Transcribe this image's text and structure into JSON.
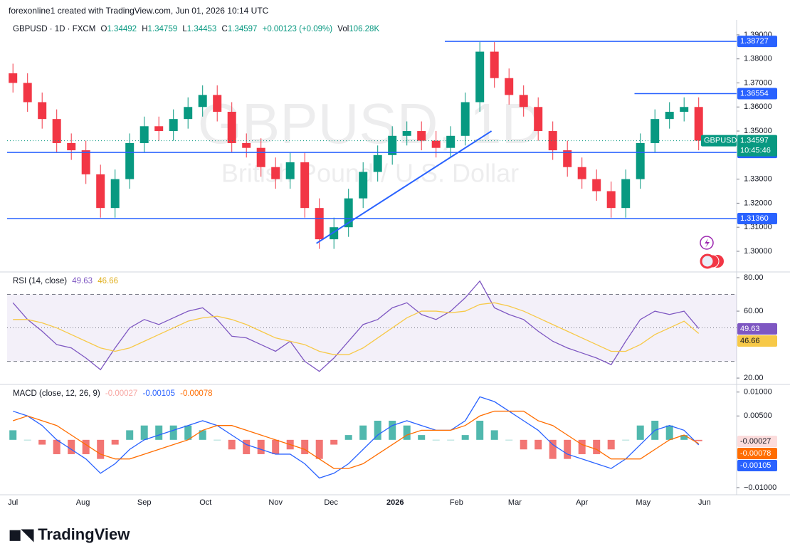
{
  "header": {
    "author_line": "forexonline1 created with TradingView.com, Jun 01, 2026 10:14 UTC"
  },
  "footer": {
    "logo": "TradingView"
  },
  "chart_data": [
    {
      "type": "candlestick",
      "symbol": "GBPUSD · 1D · FXCM",
      "ohlc_legend": {
        "o_label": "O",
        "o": 1.34492,
        "h_label": "H",
        "h": 1.34759,
        "l_label": "L",
        "l": 1.34453,
        "c_label": "C",
        "c": 1.34597,
        "change": "+0.00123 (+0.09%)",
        "vol_label": "Vol",
        "vol": "106.28K"
      },
      "watermark": "GBPUSD, 1D",
      "watermark_subtitle": "British Pound / U.S. Dollar",
      "x": [
        2,
        7,
        12,
        17,
        22,
        27,
        32,
        37,
        42,
        47,
        52,
        57,
        62,
        67,
        72,
        77,
        82,
        87,
        92,
        97,
        102,
        107,
        112,
        117,
        122,
        127,
        132,
        137,
        142,
        147,
        152,
        157,
        162,
        167,
        172,
        177,
        182,
        187,
        192,
        197,
        202,
        207,
        212,
        217,
        222,
        227,
        232,
        237
      ],
      "open": [
        1.374,
        1.37,
        1.362,
        1.355,
        1.345,
        1.342,
        1.332,
        1.318,
        1.33,
        1.345,
        1.352,
        1.35,
        1.355,
        1.36,
        1.365,
        1.358,
        1.345,
        1.343,
        1.335,
        1.33,
        1.337,
        1.318,
        1.305,
        1.31,
        1.322,
        1.333,
        1.34,
        1.348,
        1.35,
        1.346,
        1.343,
        1.348,
        1.362,
        1.383,
        1.372,
        1.365,
        1.36,
        1.35,
        1.342,
        1.335,
        1.33,
        1.325,
        1.318,
        1.33,
        1.345,
        1.355,
        1.358,
        1.36
      ],
      "high": [
        1.378,
        1.374,
        1.366,
        1.359,
        1.349,
        1.346,
        1.336,
        1.334,
        1.349,
        1.356,
        1.356,
        1.359,
        1.364,
        1.369,
        1.369,
        1.362,
        1.349,
        1.347,
        1.339,
        1.341,
        1.341,
        1.322,
        1.314,
        1.326,
        1.337,
        1.344,
        1.352,
        1.354,
        1.354,
        1.35,
        1.352,
        1.366,
        1.387,
        1.387,
        1.376,
        1.369,
        1.364,
        1.354,
        1.346,
        1.339,
        1.334,
        1.329,
        1.334,
        1.349,
        1.359,
        1.362,
        1.364,
        1.364
      ],
      "low": [
        1.366,
        1.358,
        1.351,
        1.341,
        1.338,
        1.328,
        1.314,
        1.314,
        1.326,
        1.341,
        1.346,
        1.346,
        1.351,
        1.356,
        1.354,
        1.341,
        1.339,
        1.331,
        1.326,
        1.326,
        1.314,
        1.301,
        1.301,
        1.306,
        1.318,
        1.329,
        1.336,
        1.344,
        1.342,
        1.339,
        1.339,
        1.344,
        1.358,
        1.368,
        1.361,
        1.356,
        1.346,
        1.338,
        1.331,
        1.326,
        1.321,
        1.314,
        1.314,
        1.326,
        1.341,
        1.351,
        1.354,
        1.342
      ],
      "close": [
        1.37,
        1.362,
        1.355,
        1.345,
        1.342,
        1.332,
        1.318,
        1.33,
        1.345,
        1.352,
        1.35,
        1.355,
        1.36,
        1.365,
        1.358,
        1.345,
        1.343,
        1.335,
        1.33,
        1.337,
        1.318,
        1.305,
        1.31,
        1.322,
        1.333,
        1.34,
        1.348,
        1.35,
        1.346,
        1.343,
        1.348,
        1.362,
        1.383,
        1.372,
        1.365,
        1.36,
        1.35,
        1.342,
        1.335,
        1.33,
        1.325,
        1.318,
        1.33,
        1.345,
        1.355,
        1.358,
        1.36,
        1.346
      ],
      "up_color": "#089981",
      "down_color": "#f23645",
      "xlim": [
        0,
        250
      ],
      "xticks": [
        {
          "value": 2,
          "label": "Jul"
        },
        {
          "value": 26,
          "label": "Aug"
        },
        {
          "value": 47,
          "label": "Sep"
        },
        {
          "value": 68,
          "label": "Oct"
        },
        {
          "value": 92,
          "label": "Nov"
        },
        {
          "value": 111,
          "label": "Dec"
        },
        {
          "value": 133,
          "label": "2026"
        },
        {
          "value": 154,
          "label": "Feb"
        },
        {
          "value": 174,
          "label": "Mar"
        },
        {
          "value": 197,
          "label": "Apr"
        },
        {
          "value": 218,
          "label": "May"
        },
        {
          "value": 239,
          "label": "Jun"
        }
      ],
      "ylim": [
        1.292,
        1.3956
      ],
      "yticks": [
        {
          "value": 1.3,
          "label": "1.30000"
        },
        {
          "value": 1.31,
          "label": "1.31000"
        },
        {
          "value": 1.32,
          "label": "1.32000"
        },
        {
          "value": 1.33,
          "label": "1.33000"
        },
        {
          "value": 1.35,
          "label": "1.35000"
        },
        {
          "value": 1.36,
          "label": "1.36000"
        },
        {
          "value": 1.37,
          "label": "1.37000"
        },
        {
          "value": 1.38,
          "label": "1.38000"
        },
        {
          "value": 1.39,
          "label": "1.39000"
        }
      ],
      "levels": [
        {
          "value": 1.38727,
          "from": 150
        },
        {
          "value": 1.36554,
          "from": 215
        },
        {
          "value": 1.34109,
          "from": 0
        },
        {
          "value": 1.3136,
          "label": "1.31360",
          "from": 0
        }
      ],
      "level_color": "#2962ff",
      "trendline": {
        "x": [
          106,
          166
        ],
        "y": [
          1.3033,
          1.35
        ]
      },
      "last_price": {
        "name": "GBPUSD",
        "value": 1.34597,
        "countdown": "10:45:46",
        "color": "#089981"
      }
    },
    {
      "type": "rsi",
      "title": "RSI (14, close)",
      "series": [
        {
          "color": "#7e57c2",
          "last": 49.63,
          "values": [
            65,
            55,
            48,
            40,
            38,
            32,
            25,
            38,
            50,
            55,
            52,
            56,
            60,
            62,
            55,
            45,
            44,
            40,
            36,
            42,
            30,
            24,
            32,
            42,
            52,
            55,
            62,
            65,
            58,
            55,
            60,
            68,
            78,
            62,
            58,
            55,
            48,
            42,
            38,
            35,
            32,
            28,
            42,
            55,
            60,
            58,
            60,
            49.63
          ]
        },
        {
          "color": "#f7c948",
          "last": 46.66,
          "values": [
            55,
            55,
            53,
            50,
            46,
            42,
            38,
            36,
            38,
            42,
            46,
            50,
            54,
            56,
            57,
            55,
            52,
            48,
            44,
            42,
            40,
            36,
            34,
            34,
            38,
            44,
            50,
            56,
            60,
            60,
            59,
            60,
            64,
            65,
            63,
            60,
            56,
            52,
            48,
            44,
            40,
            36,
            36,
            40,
            46,
            50,
            54,
            46.66
          ]
        }
      ],
      "bands": [
        30,
        50,
        70
      ],
      "band_color": "#7e57c2",
      "ylim": [
        16.2,
        83
      ],
      "yticks": [
        {
          "value": 80,
          "label": "80.00"
        },
        {
          "value": 60,
          "label": "60.00"
        },
        {
          "value": 20,
          "label": "20.00"
        }
      ]
    },
    {
      "type": "macd",
      "title": "MACD (close, 12, 26, 9)",
      "histogram": {
        "last": -0.00027,
        "pos_color": "#26a69a",
        "neg_color": "#ef5350",
        "values": [
          0.002,
          0,
          -0.001,
          -0.003,
          -0.003,
          -0.003,
          -0.004,
          -0.001,
          0.002,
          0.003,
          0.003,
          0.003,
          0.003,
          0.002,
          0,
          -0.002,
          -0.003,
          -0.003,
          -0.003,
          -0.002,
          -0.003,
          -0.004,
          -0.001,
          0.001,
          0.003,
          0.004,
          0.004,
          0.003,
          0.001,
          0,
          0,
          0.001,
          0.004,
          0.002,
          0,
          -0.002,
          -0.002,
          -0.004,
          -0.004,
          -0.003,
          -0.003,
          -0.002,
          0,
          0.003,
          0.004,
          0.003,
          0.001,
          -0.00027
        ]
      },
      "series": [
        {
          "color": "#2962ff",
          "last": -0.00105,
          "values": [
            0.006,
            0.005,
            0.003,
            0,
            -0.002,
            -0.004,
            -0.007,
            -0.005,
            -0.002,
            0,
            0.001,
            0.002,
            0.003,
            0.004,
            0.003,
            0.001,
            -0.001,
            -0.002,
            -0.003,
            -0.003,
            -0.005,
            -0.008,
            -0.007,
            -0.005,
            -0.002,
            0.001,
            0.003,
            0.004,
            0.003,
            0.002,
            0.002,
            0.004,
            0.009,
            0.008,
            0.006,
            0.004,
            0.002,
            -0.001,
            -0.003,
            -0.004,
            -0.005,
            -0.006,
            -0.004,
            -0.001,
            0.002,
            0.003,
            0.002,
            -0.00105
          ]
        },
        {
          "color": "#ff6d00",
          "last": -0.00078,
          "values": [
            0.004,
            0.005,
            0.004,
            0.003,
            0.001,
            -0.001,
            -0.003,
            -0.004,
            -0.004,
            -0.003,
            -0.002,
            -0.001,
            0,
            0.002,
            0.003,
            0.003,
            0.002,
            0.001,
            0,
            -0.001,
            -0.002,
            -0.004,
            -0.006,
            -0.006,
            -0.005,
            -0.003,
            -0.001,
            0.001,
            0.002,
            0.002,
            0.002,
            0.003,
            0.005,
            0.006,
            0.006,
            0.006,
            0.004,
            0.003,
            0.001,
            -0.001,
            -0.002,
            -0.004,
            -0.004,
            -0.004,
            -0.002,
            0,
            0.001,
            -0.00078
          ]
        }
      ],
      "ylim": [
        -0.0115,
        0.0113
      ],
      "yticks": [
        {
          "value": 0.01,
          "label": "0.01000"
        },
        {
          "value": 0.005,
          "label": "0.00500"
        },
        {
          "value": -0.01,
          "label": "−0.01000"
        }
      ]
    }
  ]
}
